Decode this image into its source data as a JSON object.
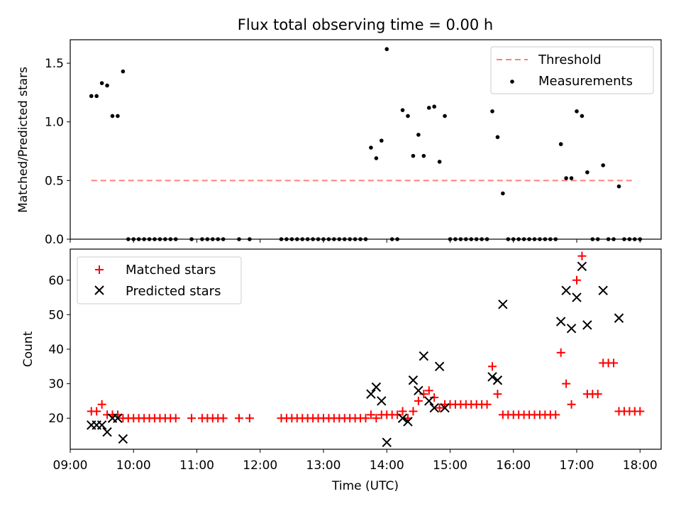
{
  "chart_data": [
    {
      "type": "scatter",
      "title": "Flux total observing time = 0.00 h",
      "xlabel": "",
      "ylabel": "Matched/Predicted stars",
      "xlim": [
        "09:00",
        "18:20"
      ],
      "ylim": [
        0,
        1.7
      ],
      "x_tick_labels": [
        "09:00",
        "10:00",
        "11:00",
        "12:00",
        "13:00",
        "14:00",
        "15:00",
        "16:00",
        "17:00",
        "18:00"
      ],
      "y_ticks": [
        "0.0",
        "0.5",
        "1.0",
        "1.5"
      ],
      "legend_position": "top-right",
      "threshold": {
        "name": "Threshold",
        "value": 0.5,
        "x_range": [
          "09:20",
          "17:54"
        ],
        "color": "#ff7f7f",
        "style": "dashed"
      },
      "measurements": {
        "name": "Measurements",
        "color": "#000000",
        "points": [
          [
            "09:20",
            1.22
          ],
          [
            "09:25",
            1.22
          ],
          [
            "09:30",
            1.33
          ],
          [
            "09:35",
            1.31
          ],
          [
            "09:40",
            1.05
          ],
          [
            "09:45",
            1.05
          ],
          [
            "09:50",
            1.43
          ],
          [
            "09:55",
            0
          ],
          [
            "10:00",
            0
          ],
          [
            "10:05",
            0
          ],
          [
            "10:10",
            0
          ],
          [
            "10:15",
            0
          ],
          [
            "10:20",
            0
          ],
          [
            "10:25",
            0
          ],
          [
            "10:30",
            0
          ],
          [
            "10:35",
            0
          ],
          [
            "10:40",
            0
          ],
          [
            "10:55",
            0
          ],
          [
            "11:05",
            0
          ],
          [
            "11:10",
            0
          ],
          [
            "11:15",
            0
          ],
          [
            "11:20",
            0
          ],
          [
            "11:25",
            0
          ],
          [
            "11:40",
            0
          ],
          [
            "11:50",
            0
          ],
          [
            "12:20",
            0
          ],
          [
            "12:25",
            0
          ],
          [
            "12:30",
            0
          ],
          [
            "12:35",
            0
          ],
          [
            "12:40",
            0
          ],
          [
            "12:45",
            0
          ],
          [
            "12:50",
            0
          ],
          [
            "12:55",
            0
          ],
          [
            "13:00",
            0
          ],
          [
            "13:05",
            0
          ],
          [
            "13:10",
            0
          ],
          [
            "13:15",
            0
          ],
          [
            "13:20",
            0
          ],
          [
            "13:25",
            0
          ],
          [
            "13:30",
            0
          ],
          [
            "13:35",
            0
          ],
          [
            "13:40",
            0
          ],
          [
            "13:45",
            0.78
          ],
          [
            "13:50",
            0.69
          ],
          [
            "13:55",
            0.84
          ],
          [
            "14:00",
            1.62
          ],
          [
            "14:05",
            0
          ],
          [
            "14:10",
            0
          ],
          [
            "14:15",
            1.1
          ],
          [
            "14:20",
            1.05
          ],
          [
            "14:25",
            0.71
          ],
          [
            "14:30",
            0.89
          ],
          [
            "14:35",
            0.71
          ],
          [
            "14:40",
            1.12
          ],
          [
            "14:45",
            1.13
          ],
          [
            "14:50",
            0.66
          ],
          [
            "14:55",
            1.05
          ],
          [
            "15:00",
            0
          ],
          [
            "15:05",
            0
          ],
          [
            "15:10",
            0
          ],
          [
            "15:15",
            0
          ],
          [
            "15:20",
            0
          ],
          [
            "15:25",
            0
          ],
          [
            "15:30",
            0
          ],
          [
            "15:35",
            0
          ],
          [
            "15:40",
            1.09
          ],
          [
            "15:45",
            0.87
          ],
          [
            "15:50",
            0.39
          ],
          [
            "15:55",
            0
          ],
          [
            "16:00",
            0
          ],
          [
            "16:05",
            0
          ],
          [
            "16:10",
            0
          ],
          [
            "16:15",
            0
          ],
          [
            "16:20",
            0
          ],
          [
            "16:25",
            0
          ],
          [
            "16:30",
            0
          ],
          [
            "16:35",
            0
          ],
          [
            "16:40",
            0
          ],
          [
            "16:45",
            0.81
          ],
          [
            "16:50",
            0.52
          ],
          [
            "16:55",
            0.52
          ],
          [
            "17:00",
            1.09
          ],
          [
            "17:05",
            1.05
          ],
          [
            "17:10",
            0.57
          ],
          [
            "17:15",
            0
          ],
          [
            "17:20",
            0
          ],
          [
            "17:25",
            0.63
          ],
          [
            "17:30",
            0
          ],
          [
            "17:35",
            0
          ],
          [
            "17:40",
            0.45
          ],
          [
            "17:45",
            0
          ],
          [
            "17:50",
            0
          ],
          [
            "17:55",
            0
          ],
          [
            "18:00",
            0
          ]
        ]
      }
    },
    {
      "type": "scatter",
      "title": "",
      "xlabel": "Time (UTC)",
      "ylabel": "Count",
      "xlim": [
        "09:00",
        "18:20"
      ],
      "ylim": [
        11,
        69
      ],
      "x_tick_labels": [
        "09:00",
        "10:00",
        "11:00",
        "12:00",
        "13:00",
        "14:00",
        "15:00",
        "16:00",
        "17:00",
        "18:00"
      ],
      "y_ticks": [
        "20",
        "30",
        "40",
        "50",
        "60"
      ],
      "legend_position": "top-left",
      "series": [
        {
          "name": "Matched stars",
          "marker": "plus",
          "color": "#ff0000",
          "points": [
            [
              "09:20",
              22
            ],
            [
              "09:25",
              22
            ],
            [
              "09:30",
              24
            ],
            [
              "09:35",
              21
            ],
            [
              "09:40",
              21
            ],
            [
              "09:45",
              21
            ],
            [
              "09:50",
              20
            ],
            [
              "09:55",
              20
            ],
            [
              "10:00",
              20
            ],
            [
              "10:05",
              20
            ],
            [
              "10:10",
              20
            ],
            [
              "10:15",
              20
            ],
            [
              "10:20",
              20
            ],
            [
              "10:25",
              20
            ],
            [
              "10:30",
              20
            ],
            [
              "10:35",
              20
            ],
            [
              "10:40",
              20
            ],
            [
              "10:55",
              20
            ],
            [
              "11:05",
              20
            ],
            [
              "11:10",
              20
            ],
            [
              "11:15",
              20
            ],
            [
              "11:20",
              20
            ],
            [
              "11:25",
              20
            ],
            [
              "11:40",
              20
            ],
            [
              "11:50",
              20
            ],
            [
              "12:20",
              20
            ],
            [
              "12:25",
              20
            ],
            [
              "12:30",
              20
            ],
            [
              "12:35",
              20
            ],
            [
              "12:40",
              20
            ],
            [
              "12:45",
              20
            ],
            [
              "12:50",
              20
            ],
            [
              "12:55",
              20
            ],
            [
              "13:00",
              20
            ],
            [
              "13:05",
              20
            ],
            [
              "13:10",
              20
            ],
            [
              "13:15",
              20
            ],
            [
              "13:20",
              20
            ],
            [
              "13:25",
              20
            ],
            [
              "13:30",
              20
            ],
            [
              "13:35",
              20
            ],
            [
              "13:40",
              20
            ],
            [
              "13:45",
              21
            ],
            [
              "13:50",
              20
            ],
            [
              "13:55",
              21
            ],
            [
              "14:00",
              21
            ],
            [
              "14:05",
              21
            ],
            [
              "14:10",
              21
            ],
            [
              "14:15",
              22
            ],
            [
              "14:20",
              20
            ],
            [
              "14:25",
              22
            ],
            [
              "14:30",
              25
            ],
            [
              "14:35",
              27
            ],
            [
              "14:40",
              28
            ],
            [
              "14:45",
              26
            ],
            [
              "14:50",
              23
            ],
            [
              "14:55",
              24
            ],
            [
              "15:00",
              24
            ],
            [
              "15:05",
              24
            ],
            [
              "15:10",
              24
            ],
            [
              "15:15",
              24
            ],
            [
              "15:20",
              24
            ],
            [
              "15:25",
              24
            ],
            [
              "15:30",
              24
            ],
            [
              "15:35",
              24
            ],
            [
              "15:40",
              35
            ],
            [
              "15:45",
              27
            ],
            [
              "15:50",
              21
            ],
            [
              "15:55",
              21
            ],
            [
              "16:00",
              21
            ],
            [
              "16:05",
              21
            ],
            [
              "16:10",
              21
            ],
            [
              "16:15",
              21
            ],
            [
              "16:20",
              21
            ],
            [
              "16:25",
              21
            ],
            [
              "16:30",
              21
            ],
            [
              "16:35",
              21
            ],
            [
              "16:40",
              21
            ],
            [
              "16:45",
              39
            ],
            [
              "16:50",
              30
            ],
            [
              "16:55",
              24
            ],
            [
              "17:00",
              60
            ],
            [
              "17:05",
              67
            ],
            [
              "17:10",
              27
            ],
            [
              "17:15",
              27
            ],
            [
              "17:20",
              27
            ],
            [
              "17:25",
              36
            ],
            [
              "17:30",
              36
            ],
            [
              "17:35",
              36
            ],
            [
              "17:40",
              22
            ],
            [
              "17:45",
              22
            ],
            [
              "17:50",
              22
            ],
            [
              "17:55",
              22
            ],
            [
              "18:00",
              22
            ]
          ]
        },
        {
          "name": "Predicted stars",
          "marker": "x",
          "color": "#000000",
          "points": [
            [
              "09:20",
              18
            ],
            [
              "09:25",
              18
            ],
            [
              "09:30",
              18
            ],
            [
              "09:35",
              16
            ],
            [
              "09:40",
              20
            ],
            [
              "09:45",
              20
            ],
            [
              "09:50",
              14
            ],
            [
              "13:45",
              27
            ],
            [
              "13:50",
              29
            ],
            [
              "13:55",
              25
            ],
            [
              "14:00",
              13
            ],
            [
              "14:15",
              20
            ],
            [
              "14:20",
              19
            ],
            [
              "14:25",
              31
            ],
            [
              "14:30",
              28
            ],
            [
              "14:35",
              38
            ],
            [
              "14:40",
              25
            ],
            [
              "14:45",
              23
            ],
            [
              "14:50",
              35
            ],
            [
              "14:55",
              23
            ],
            [
              "15:40",
              32
            ],
            [
              "15:45",
              31
            ],
            [
              "15:50",
              53
            ],
            [
              "16:45",
              48
            ],
            [
              "16:50",
              57
            ],
            [
              "16:55",
              46
            ],
            [
              "17:00",
              55
            ],
            [
              "17:05",
              64
            ],
            [
              "17:10",
              47
            ],
            [
              "17:25",
              57
            ],
            [
              "17:40",
              49
            ]
          ]
        }
      ]
    }
  ]
}
